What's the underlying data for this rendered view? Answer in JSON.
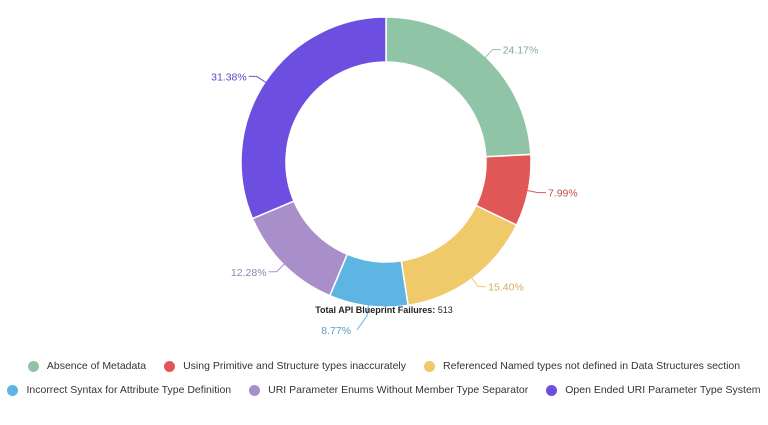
{
  "chart_data": {
    "type": "pie",
    "subtype": "donut",
    "slices": [
      {
        "label": "Absence of Metadata",
        "value": 24.17,
        "value_label": "24.17%",
        "color": "#8fc4a6"
      },
      {
        "label": "Using Primitive and Structure types inaccurately",
        "value": 7.99,
        "value_label": "7.99%",
        "color": "#e05757"
      },
      {
        "label": "Referenced Named types not defined in Data Structures section",
        "value": 15.4,
        "value_label": "15.40%",
        "color": "#f0c96b"
      },
      {
        "label": "Incorrect Syntax for Attribute Type Definition",
        "value": 8.77,
        "value_label": "8.77%",
        "color": "#5eb5e3"
      },
      {
        "label": "URI Parameter Enums Without Member Type Separator",
        "value": 12.28,
        "value_label": "12.28%",
        "color": "#a88fc9"
      },
      {
        "label": "Open Ended URI Parameter Type System",
        "value": 31.38,
        "value_label": "31.38%",
        "color": "#6c4fe0"
      }
    ],
    "total": {
      "title": "Total API Blueprint Failures:",
      "value": "513"
    },
    "legend_position": "bottom"
  }
}
